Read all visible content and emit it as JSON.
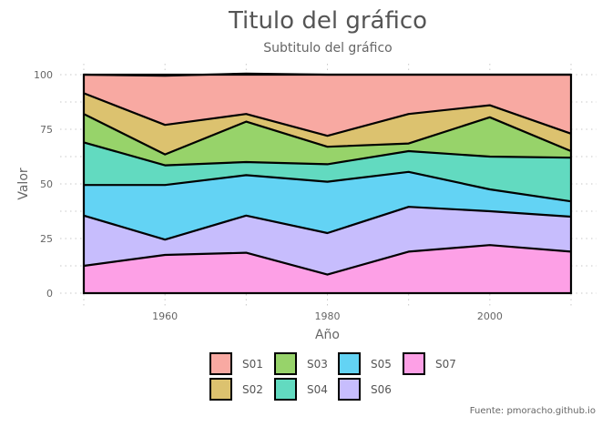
{
  "chart_data": {
    "type": "area",
    "stacked": true,
    "title": "Titulo del gráfico",
    "subtitle": "Subtitulo del gráfico",
    "xlabel": "Año",
    "ylabel": "Valor",
    "caption": "Fuente: pmoracho.github.io",
    "x": [
      1950,
      1960,
      1970,
      1980,
      1990,
      2000,
      2010
    ],
    "xlim": [
      1950,
      2010
    ],
    "ylim": [
      0,
      100
    ],
    "x_ticks": [
      1960,
      1980,
      2000
    ],
    "y_ticks": [
      0,
      25,
      50,
      75,
      100
    ],
    "grid": "dotted",
    "legend_position": "bottom",
    "stack_order_top_to_bottom": [
      "S01",
      "S02",
      "S03",
      "S04",
      "S05",
      "S06",
      "S07"
    ],
    "series": [
      {
        "name": "S01",
        "color": "#f8a9a2",
        "values": [
          8.5,
          22.5,
          18.5,
          28,
          18,
          14,
          27
        ]
      },
      {
        "name": "S02",
        "color": "#dcc26f",
        "values": [
          9.5,
          13.5,
          3.5,
          5,
          13.5,
          5.5,
          8
        ]
      },
      {
        "name": "S03",
        "color": "#97d36a",
        "values": [
          13,
          5,
          18.5,
          8,
          3.5,
          18,
          3
        ]
      },
      {
        "name": "S04",
        "color": "#62dac0",
        "values": [
          19.5,
          9,
          6,
          8,
          9.5,
          15,
          20
        ]
      },
      {
        "name": "S05",
        "color": "#63d3f4",
        "values": [
          14,
          25,
          18.5,
          23.5,
          16,
          10,
          7
        ]
      },
      {
        "name": "S06",
        "color": "#c7bdfd",
        "values": [
          23,
          7,
          17,
          19,
          20.5,
          15.5,
          16
        ]
      },
      {
        "name": "S07",
        "color": "#fda0e6",
        "values": [
          12.5,
          17.5,
          18.5,
          8.5,
          19,
          22,
          19
        ]
      }
    ]
  }
}
